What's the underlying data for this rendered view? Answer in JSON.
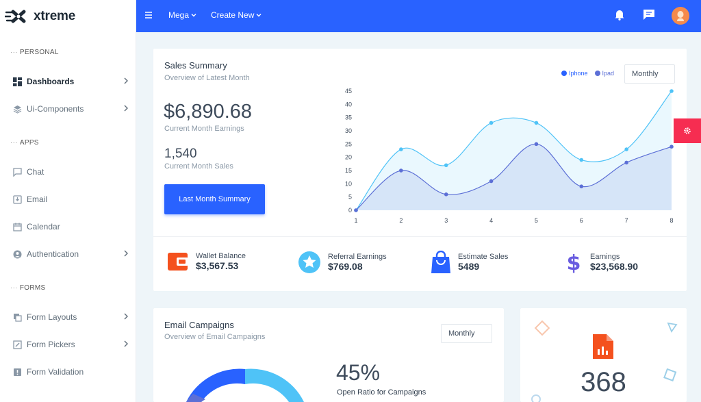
{
  "brand": {
    "name": "xtreme"
  },
  "sidebar": {
    "sections": [
      {
        "label": "PERSONAL"
      },
      {
        "label": "APPS"
      },
      {
        "label": "FORMS"
      }
    ],
    "items": [
      {
        "label": "Dashboards",
        "icon": "dashboard-icon"
      },
      {
        "label": "Ui-Components",
        "icon": "layers-icon"
      },
      {
        "label": "Chat",
        "icon": "chat-icon"
      },
      {
        "label": "Email",
        "icon": "inbox-icon"
      },
      {
        "label": "Calendar",
        "icon": "calendar-icon"
      },
      {
        "label": "Authentication",
        "icon": "account-icon"
      },
      {
        "label": "Form Layouts",
        "icon": "copy-icon"
      },
      {
        "label": "Form Pickers",
        "icon": "edit-icon"
      },
      {
        "label": "Form Validation",
        "icon": "alert-icon"
      }
    ]
  },
  "topbar": {
    "mega_label": "Mega",
    "create_label": "Create New"
  },
  "sales": {
    "title": "Sales Summary",
    "subtitle": "Overview of Latest Month",
    "earnings_value": "$6,890.68",
    "earnings_label": "Current Month Earnings",
    "sales_value": "1,540",
    "sales_label": "Current Month Sales",
    "button_label": "Last Month Summary",
    "select_value": "Monthly",
    "legend": [
      {
        "label": "Iphone",
        "color": "#2962ff"
      },
      {
        "label": "Ipad",
        "color": "#5c6fd6"
      }
    ]
  },
  "chart_data": {
    "type": "area",
    "x": [
      1,
      2,
      3,
      4,
      5,
      6,
      7,
      8
    ],
    "series": [
      {
        "name": "Iphone",
        "values": [
          0,
          23,
          17,
          33,
          33,
          19,
          23,
          45
        ],
        "color": "#4fc3f7"
      },
      {
        "name": "Ipad",
        "values": [
          0,
          15,
          6,
          11,
          25,
          9,
          18,
          24
        ],
        "color": "#5c6fd6"
      }
    ],
    "ylim": [
      0,
      45
    ],
    "yticks": [
      0,
      5,
      10,
      15,
      20,
      25,
      30,
      35,
      40,
      45
    ],
    "grid": false
  },
  "stats": [
    {
      "label": "Wallet Balance",
      "value": "$3,567.53",
      "icon": "wallet-icon",
      "color": "#f4511e"
    },
    {
      "label": "Referral Earnings",
      "value": "$769.08",
      "icon": "star-icon",
      "color": "#4fc3f7"
    },
    {
      "label": "Estimate Sales",
      "value": "5489",
      "icon": "shopping-bag-icon",
      "color": "#2962ff"
    },
    {
      "label": "Earnings",
      "value": "$23,568.90",
      "icon": "dollar-icon",
      "color": "#6a5de0"
    }
  ],
  "email": {
    "title": "Email Campaigns",
    "subtitle": "Overview of Email Campaigns",
    "select_value": "Monthly",
    "ratio_value": "45%",
    "ratio_label": "Open Ratio for Campaigns"
  },
  "file_card": {
    "value": "368"
  }
}
